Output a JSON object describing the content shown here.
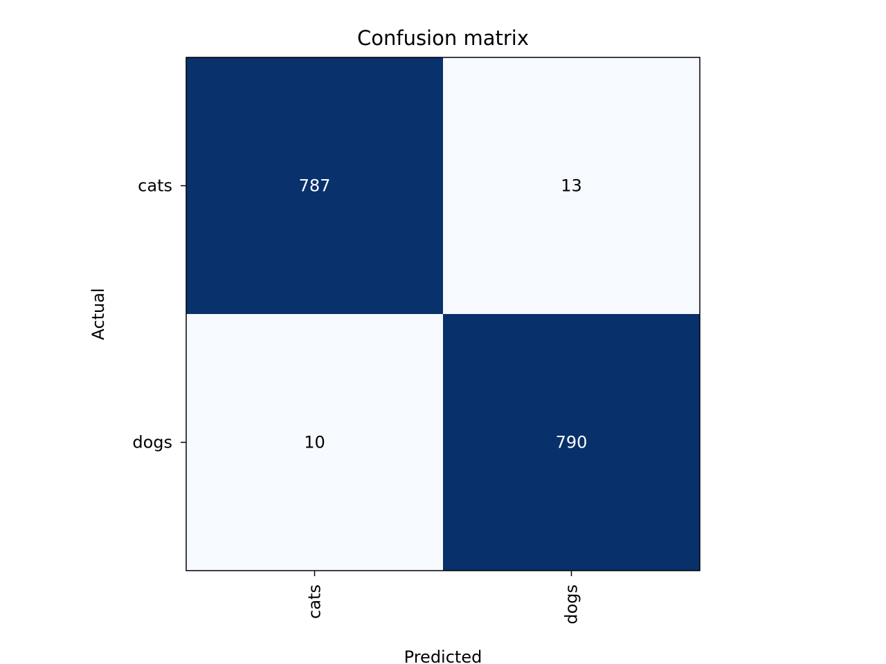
{
  "chart_data": {
    "type": "heatmap",
    "title": "Confusion matrix",
    "xlabel": "Predicted",
    "ylabel": "Actual",
    "x_categories": [
      "cats",
      "dogs"
    ],
    "y_categories": [
      "cats",
      "dogs"
    ],
    "values": [
      [
        787,
        13
      ],
      [
        10,
        790
      ]
    ],
    "colormap": "Blues",
    "color_low": "#f7fbff",
    "color_high": "#08306b",
    "text_color_dark_cell": "#ffffff",
    "text_color_light_cell": "#000000",
    "grid": false
  }
}
